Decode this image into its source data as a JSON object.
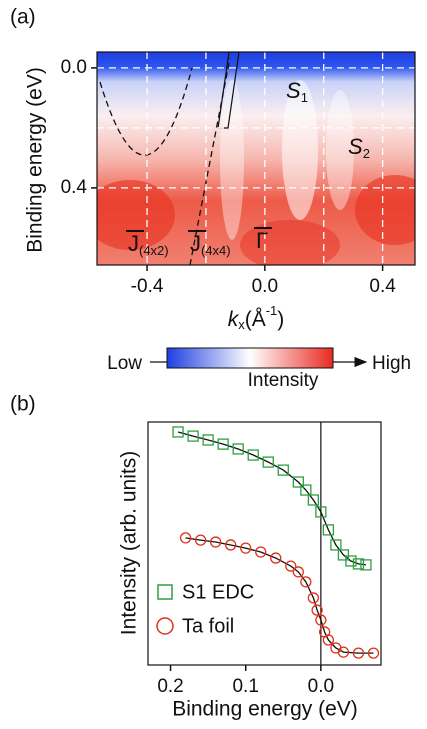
{
  "chart_data": [
    {
      "type": "image",
      "panel_label": "(a)",
      "ylabel": "Binding energy (eV)",
      "xlabel": [
        "k",
        "x",
        "(Å",
        "-1",
        ")"
      ],
      "xlim": [
        -0.57,
        0.51
      ],
      "ylim": [
        -0.053,
        0.657
      ],
      "xticks": [
        -0.4,
        {
          "value": 0,
          "label": "0.0"
        },
        0.4
      ],
      "yticks": [
        {
          "value": 0,
          "label": "0.0"
        },
        0.4
      ],
      "xgrid": [
        -0.4,
        -0.2,
        0,
        0.2,
        0.4
      ],
      "ygrid": [
        0,
        0.2,
        0.4
      ],
      "grid": true,
      "annotations": [
        {
          "text": "S",
          "sub": "1"
        },
        {
          "text": "S",
          "sub": "2"
        },
        {
          "text": "J",
          "sub": "(4x2)"
        },
        {
          "text": "J",
          "sub": "(4x4)"
        },
        {
          "text": "Γ"
        }
      ],
      "colorbar": {
        "low": "Low",
        "high": "High",
        "label": "Intensity"
      }
    },
    {
      "type": "scatter",
      "panel_label": "(b)",
      "xlabel": "Binding energy (eV)",
      "ylabel": "Intensity (arb. units)",
      "xlim": [
        0.23,
        -0.08
      ],
      "ylim": [
        0,
        10
      ],
      "xticks": [
        0.2,
        0.1,
        {
          "value": 0,
          "label": "0.0"
        }
      ],
      "series": [
        {
          "name": "S1 EDC",
          "color": "#2ca040",
          "marker": "square",
          "x": [
            0.19,
            0.17,
            0.15,
            0.13,
            0.11,
            0.09,
            0.07,
            0.05,
            0.03,
            0.02,
            0.01,
            0.0,
            -0.01,
            -0.02,
            -0.03,
            -0.04,
            -0.05,
            -0.06
          ],
          "values": [
            9.59,
            9.42,
            9.26,
            9.09,
            8.89,
            8.64,
            8.35,
            8.02,
            7.53,
            7.2,
            6.79,
            6.3,
            5.56,
            4.94,
            4.53,
            4.28,
            4.16,
            4.12
          ]
        },
        {
          "name": "Ta foil",
          "color": "#e0301a",
          "marker": "circle",
          "x": [
            0.18,
            0.16,
            0.14,
            0.12,
            0.1,
            0.08,
            0.06,
            0.04,
            0.03,
            0.02,
            0.01,
            0.005,
            0.0,
            -0.005,
            -0.01,
            -0.02,
            -0.03,
            -0.05,
            -0.07
          ],
          "values": [
            5.23,
            5.14,
            5.06,
            4.94,
            4.81,
            4.65,
            4.4,
            4.07,
            3.83,
            3.42,
            2.76,
            2.26,
            1.85,
            1.36,
            1.03,
            0.7,
            0.53,
            0.49,
            0.49
          ]
        }
      ]
    }
  ]
}
